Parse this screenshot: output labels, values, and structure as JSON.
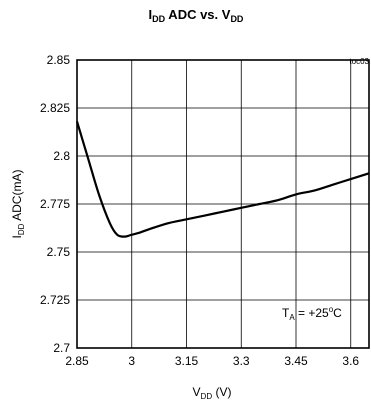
{
  "chart_data": {
    "type": "line",
    "title": {
      "main": "I",
      "sub": "DD",
      "rest": " ADC vs. V",
      "sub2": "DD"
    },
    "figure_id": "toc03",
    "xlabel": {
      "main": "V",
      "sub": "DD",
      "rest": " (V)"
    },
    "ylabel": {
      "main": "I",
      "sub": "DD",
      "rest": " ADC(mA)"
    },
    "xlim": [
      2.85,
      3.65
    ],
    "ylim": [
      2.7,
      2.85
    ],
    "xticks": [
      2.85,
      3.0,
      3.15,
      3.3,
      3.45,
      3.6
    ],
    "xtick_labels": [
      "2.85",
      "3",
      "3.15",
      "3.3",
      "3.45",
      "3.6"
    ],
    "yticks": [
      2.85,
      2.825,
      2.8,
      2.775,
      2.75,
      2.725,
      2.7
    ],
    "ytick_labels": [
      "2.85",
      "2.825",
      "2.8",
      "2.775",
      "2.75",
      "2.725",
      "2.7"
    ],
    "grid": true,
    "annotation": {
      "main": "T",
      "sub": "A",
      "rest": " = +25",
      "sup": "o",
      "unit": "C"
    },
    "series": [
      {
        "x": [
          2.85,
          2.88,
          2.91,
          2.94,
          2.96,
          2.98,
          3.0,
          3.02,
          3.05,
          3.1,
          3.15,
          3.2,
          3.25,
          3.3,
          3.35,
          3.4,
          3.45,
          3.5,
          3.55,
          3.6,
          3.65
        ],
        "y": [
          2.818,
          2.799,
          2.78,
          2.765,
          2.759,
          2.758,
          2.759,
          2.76,
          2.762,
          2.765,
          2.767,
          2.769,
          2.771,
          2.773,
          2.775,
          2.777,
          2.78,
          2.782,
          2.785,
          2.788,
          2.791
        ]
      }
    ]
  }
}
